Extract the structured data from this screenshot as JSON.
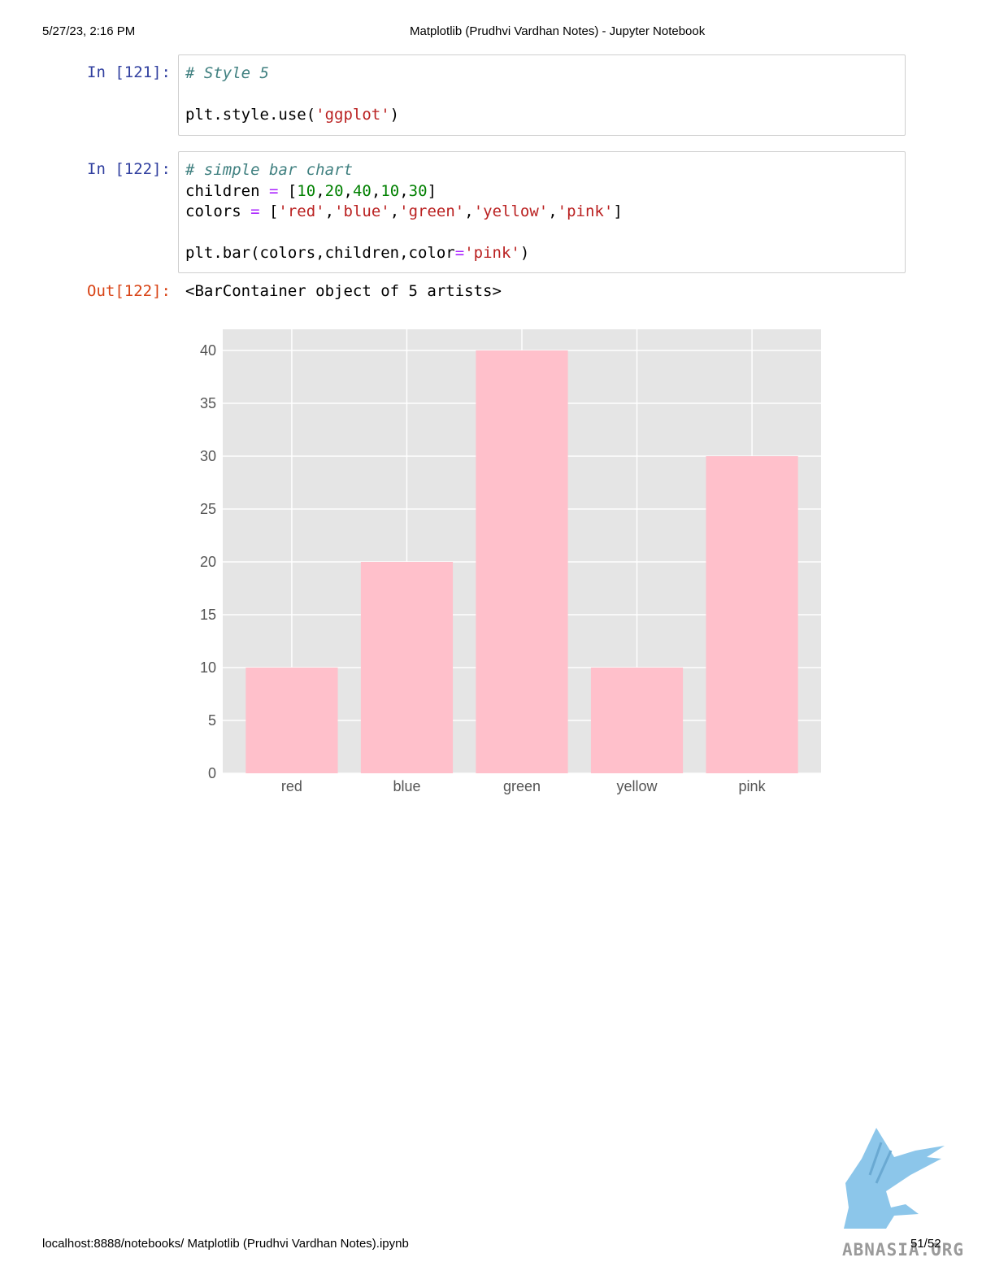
{
  "print_header": {
    "datetime": "5/27/23, 2:16 PM",
    "title": "Matplotlib (Prudhvi Vardhan Notes) - Jupyter Notebook"
  },
  "cells": [
    {
      "prompt": "In [121]:",
      "lines": [
        [
          {
            "t": "# Style 5",
            "c": "comment"
          }
        ],
        [],
        [
          {
            "t": "plt.style.use("
          },
          {
            "t": "'ggplot'",
            "c": "string"
          },
          {
            "t": ")"
          }
        ]
      ]
    },
    {
      "prompt": "In [122]:",
      "lines": [
        [
          {
            "t": "# simple bar chart",
            "c": "comment"
          }
        ],
        [
          {
            "t": "children "
          },
          {
            "t": "=",
            "c": "op"
          },
          {
            "t": " ["
          },
          {
            "t": "10",
            "c": "num"
          },
          {
            "t": ","
          },
          {
            "t": "20",
            "c": "num"
          },
          {
            "t": ","
          },
          {
            "t": "40",
            "c": "num"
          },
          {
            "t": ","
          },
          {
            "t": "10",
            "c": "num"
          },
          {
            "t": ","
          },
          {
            "t": "30",
            "c": "num"
          },
          {
            "t": "]"
          }
        ],
        [
          {
            "t": "colors "
          },
          {
            "t": "=",
            "c": "op"
          },
          {
            "t": " ["
          },
          {
            "t": "'red'",
            "c": "string"
          },
          {
            "t": ","
          },
          {
            "t": "'blue'",
            "c": "string"
          },
          {
            "t": ","
          },
          {
            "t": "'green'",
            "c": "string"
          },
          {
            "t": ","
          },
          {
            "t": "'yellow'",
            "c": "string"
          },
          {
            "t": ","
          },
          {
            "t": "'pink'",
            "c": "string"
          },
          {
            "t": "]"
          }
        ],
        [],
        [
          {
            "t": "plt.bar(colors,children,color"
          },
          {
            "t": "=",
            "c": "op"
          },
          {
            "t": "'pink'",
            "c": "string"
          },
          {
            "t": ")"
          }
        ]
      ]
    }
  ],
  "output": {
    "prompt": "Out[122]:",
    "text": "<BarContainer object of 5 artists>"
  },
  "chart_data": {
    "type": "bar",
    "categories": [
      "red",
      "blue",
      "green",
      "yellow",
      "pink"
    ],
    "values": [
      10,
      20,
      40,
      10,
      30
    ],
    "ylim": [
      0,
      42
    ],
    "yticks": [
      0,
      5,
      10,
      15,
      20,
      25,
      30,
      35,
      40
    ],
    "bar_color": "#ffc0cb",
    "background_color": "#e5e5e5",
    "grid": true,
    "style": "ggplot"
  },
  "print_footer": {
    "url": "localhost:8888/notebooks/ Matplotlib (Prudhvi Vardhan Notes).ipynb",
    "page": "51/52"
  },
  "watermark": {
    "text": "ABNASIA.ORG",
    "icon": "griffin-logo-icon"
  }
}
